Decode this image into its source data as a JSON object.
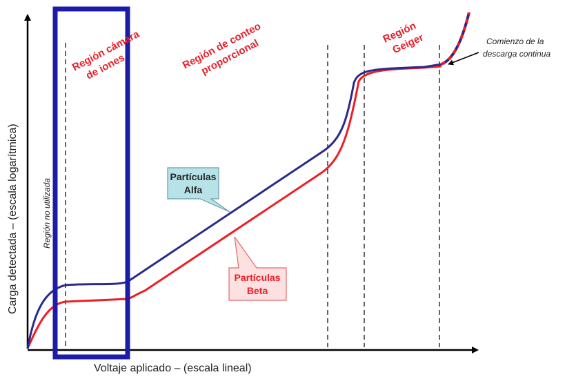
{
  "axes": {
    "x_label": "Voltaje aplicado – (escala lineal)",
    "y_label": "Carga detectada – (escala logarítmica)"
  },
  "regions": {
    "unused": "Región no utilizada",
    "ion_chamber_line1": "Región cámara",
    "ion_chamber_line2": "de iones",
    "proportional_line1": "Región de conteo",
    "proportional_line2": "proporcional",
    "geiger_line1": "Región",
    "geiger_line2": "Geiger"
  },
  "annotations": {
    "discharge_line1": "Comienzo de la",
    "discharge_line2": "descarga continua"
  },
  "callouts": {
    "alpha_line1": "Partículas",
    "alpha_line2": "Alfa",
    "beta_line1": "Partículas",
    "beta_line2": "Beta"
  },
  "colors": {
    "alpha_curve": "#2a2a8c",
    "beta_curve": "#ee1c25",
    "region_text": "#e8202a",
    "highlight_box": "#1c1ca8",
    "callout_alpha_fill": "#b7e3e8",
    "callout_beta_fill": "#fde0e0"
  }
}
